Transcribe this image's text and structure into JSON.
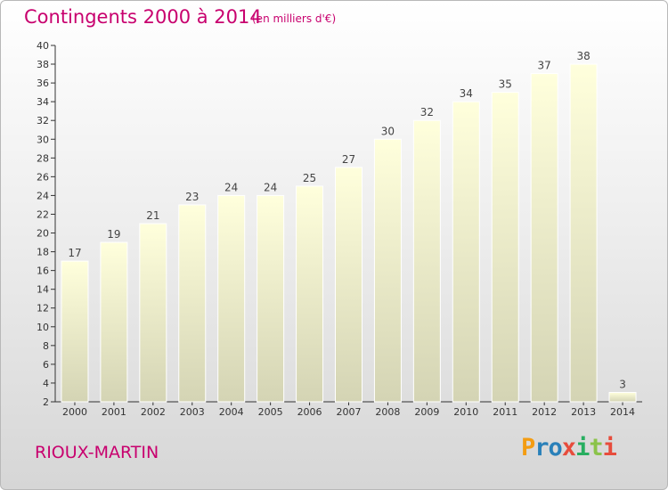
{
  "header": {
    "title": "Contingents 2000 à 2014",
    "subtitle": "(en milliers d'€)"
  },
  "footer": {
    "place": "RIOUX-MARTIN",
    "logo_letters": [
      "P",
      "r",
      "o",
      "x",
      "i",
      "t",
      "i"
    ],
    "logo_colors": [
      "#f39c12",
      "#2980b9",
      "#2980b9",
      "#e74c3c",
      "#27ae60",
      "#8bc34a",
      "#e74c3c"
    ]
  },
  "colors": {
    "title": "#c8006e",
    "bar_top": "#ffffdc",
    "bar_bottom": "#d4d4b4",
    "axis": "#333333",
    "label": "#444444"
  },
  "chart_data": {
    "type": "bar",
    "categories": [
      "2000",
      "2001",
      "2002",
      "2003",
      "2004",
      "2005",
      "2006",
      "2007",
      "2008",
      "2009",
      "2010",
      "2011",
      "2012",
      "2013",
      "2014"
    ],
    "values": [
      17,
      19,
      21,
      23,
      24,
      24,
      25,
      27,
      30,
      32,
      34,
      35,
      37,
      38,
      3
    ],
    "ylim": [
      2,
      40
    ],
    "yticks": [
      2,
      4,
      6,
      8,
      10,
      12,
      14,
      16,
      18,
      20,
      22,
      24,
      26,
      28,
      30,
      32,
      34,
      36,
      38,
      40
    ],
    "grid": false,
    "data_labels": true
  }
}
